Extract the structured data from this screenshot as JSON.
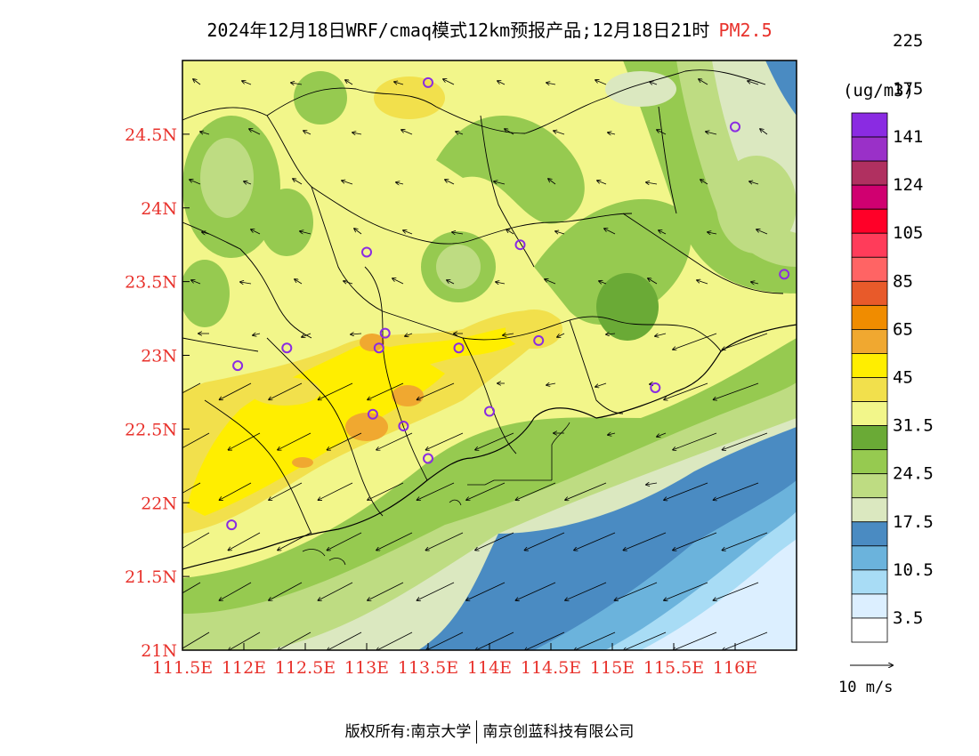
{
  "title": {
    "main": "2024年12月18日WRF/cmaq模式12km预报产品;12月18日21时",
    "pollutant": "PM2.5"
  },
  "map": {
    "lon_range": [
      111.5,
      116.5
    ],
    "lat_range": [
      21,
      25
    ],
    "x_ticks": [
      "111.5E",
      "112E",
      "112.5E",
      "113E",
      "113.5E",
      "114E",
      "114.5E",
      "115E",
      "115.5E",
      "116E"
    ],
    "y_ticks": [
      "21N",
      "21.5N",
      "22N",
      "22.5N",
      "23N",
      "23.5N",
      "24N",
      "24.5N"
    ],
    "stations": [
      [
        113.5,
        24.85
      ],
      [
        113.0,
        23.7
      ],
      [
        113.15,
        23.15
      ],
      [
        113.1,
        23.05
      ],
      [
        113.75,
        23.05
      ],
      [
        114.4,
        23.1
      ],
      [
        114.25,
        23.75
      ],
      [
        115.35,
        22.78
      ],
      [
        113.05,
        22.6
      ],
      [
        113.3,
        22.52
      ],
      [
        113.5,
        22.3
      ],
      [
        114.0,
        22.62
      ],
      [
        112.35,
        23.05
      ],
      [
        111.95,
        22.93
      ],
      [
        111.9,
        21.85
      ],
      [
        116.0,
        24.55
      ],
      [
        116.4,
        23.55
      ]
    ]
  },
  "legend": {
    "unit": "(ug/m3)",
    "colors": [
      "#ffffff",
      "#dcefff",
      "#a8dcf5",
      "#6bb3dc",
      "#4a8bc2",
      "#dbe8c0",
      "#bedc82",
      "#96ca50",
      "#6aaa36",
      "#f2f68a",
      "#f2e04c",
      "#ffee00",
      "#f0a830",
      "#f08c00",
      "#e85a2a",
      "#ff6464",
      "#ff3c5a",
      "#ff0028",
      "#d00070",
      "#b03060",
      "#9a30c8",
      "#8a2be2"
    ],
    "labels": [
      "3.5",
      "10.5",
      "17.5",
      "24.5",
      "31.5",
      "45",
      "65",
      "85",
      "105",
      "124",
      "141",
      "175",
      "225"
    ],
    "wind_scale": "10 m/s"
  },
  "footer": {
    "left": "版权所有:南京大学",
    "right": "南京创蓝科技有限公司"
  }
}
